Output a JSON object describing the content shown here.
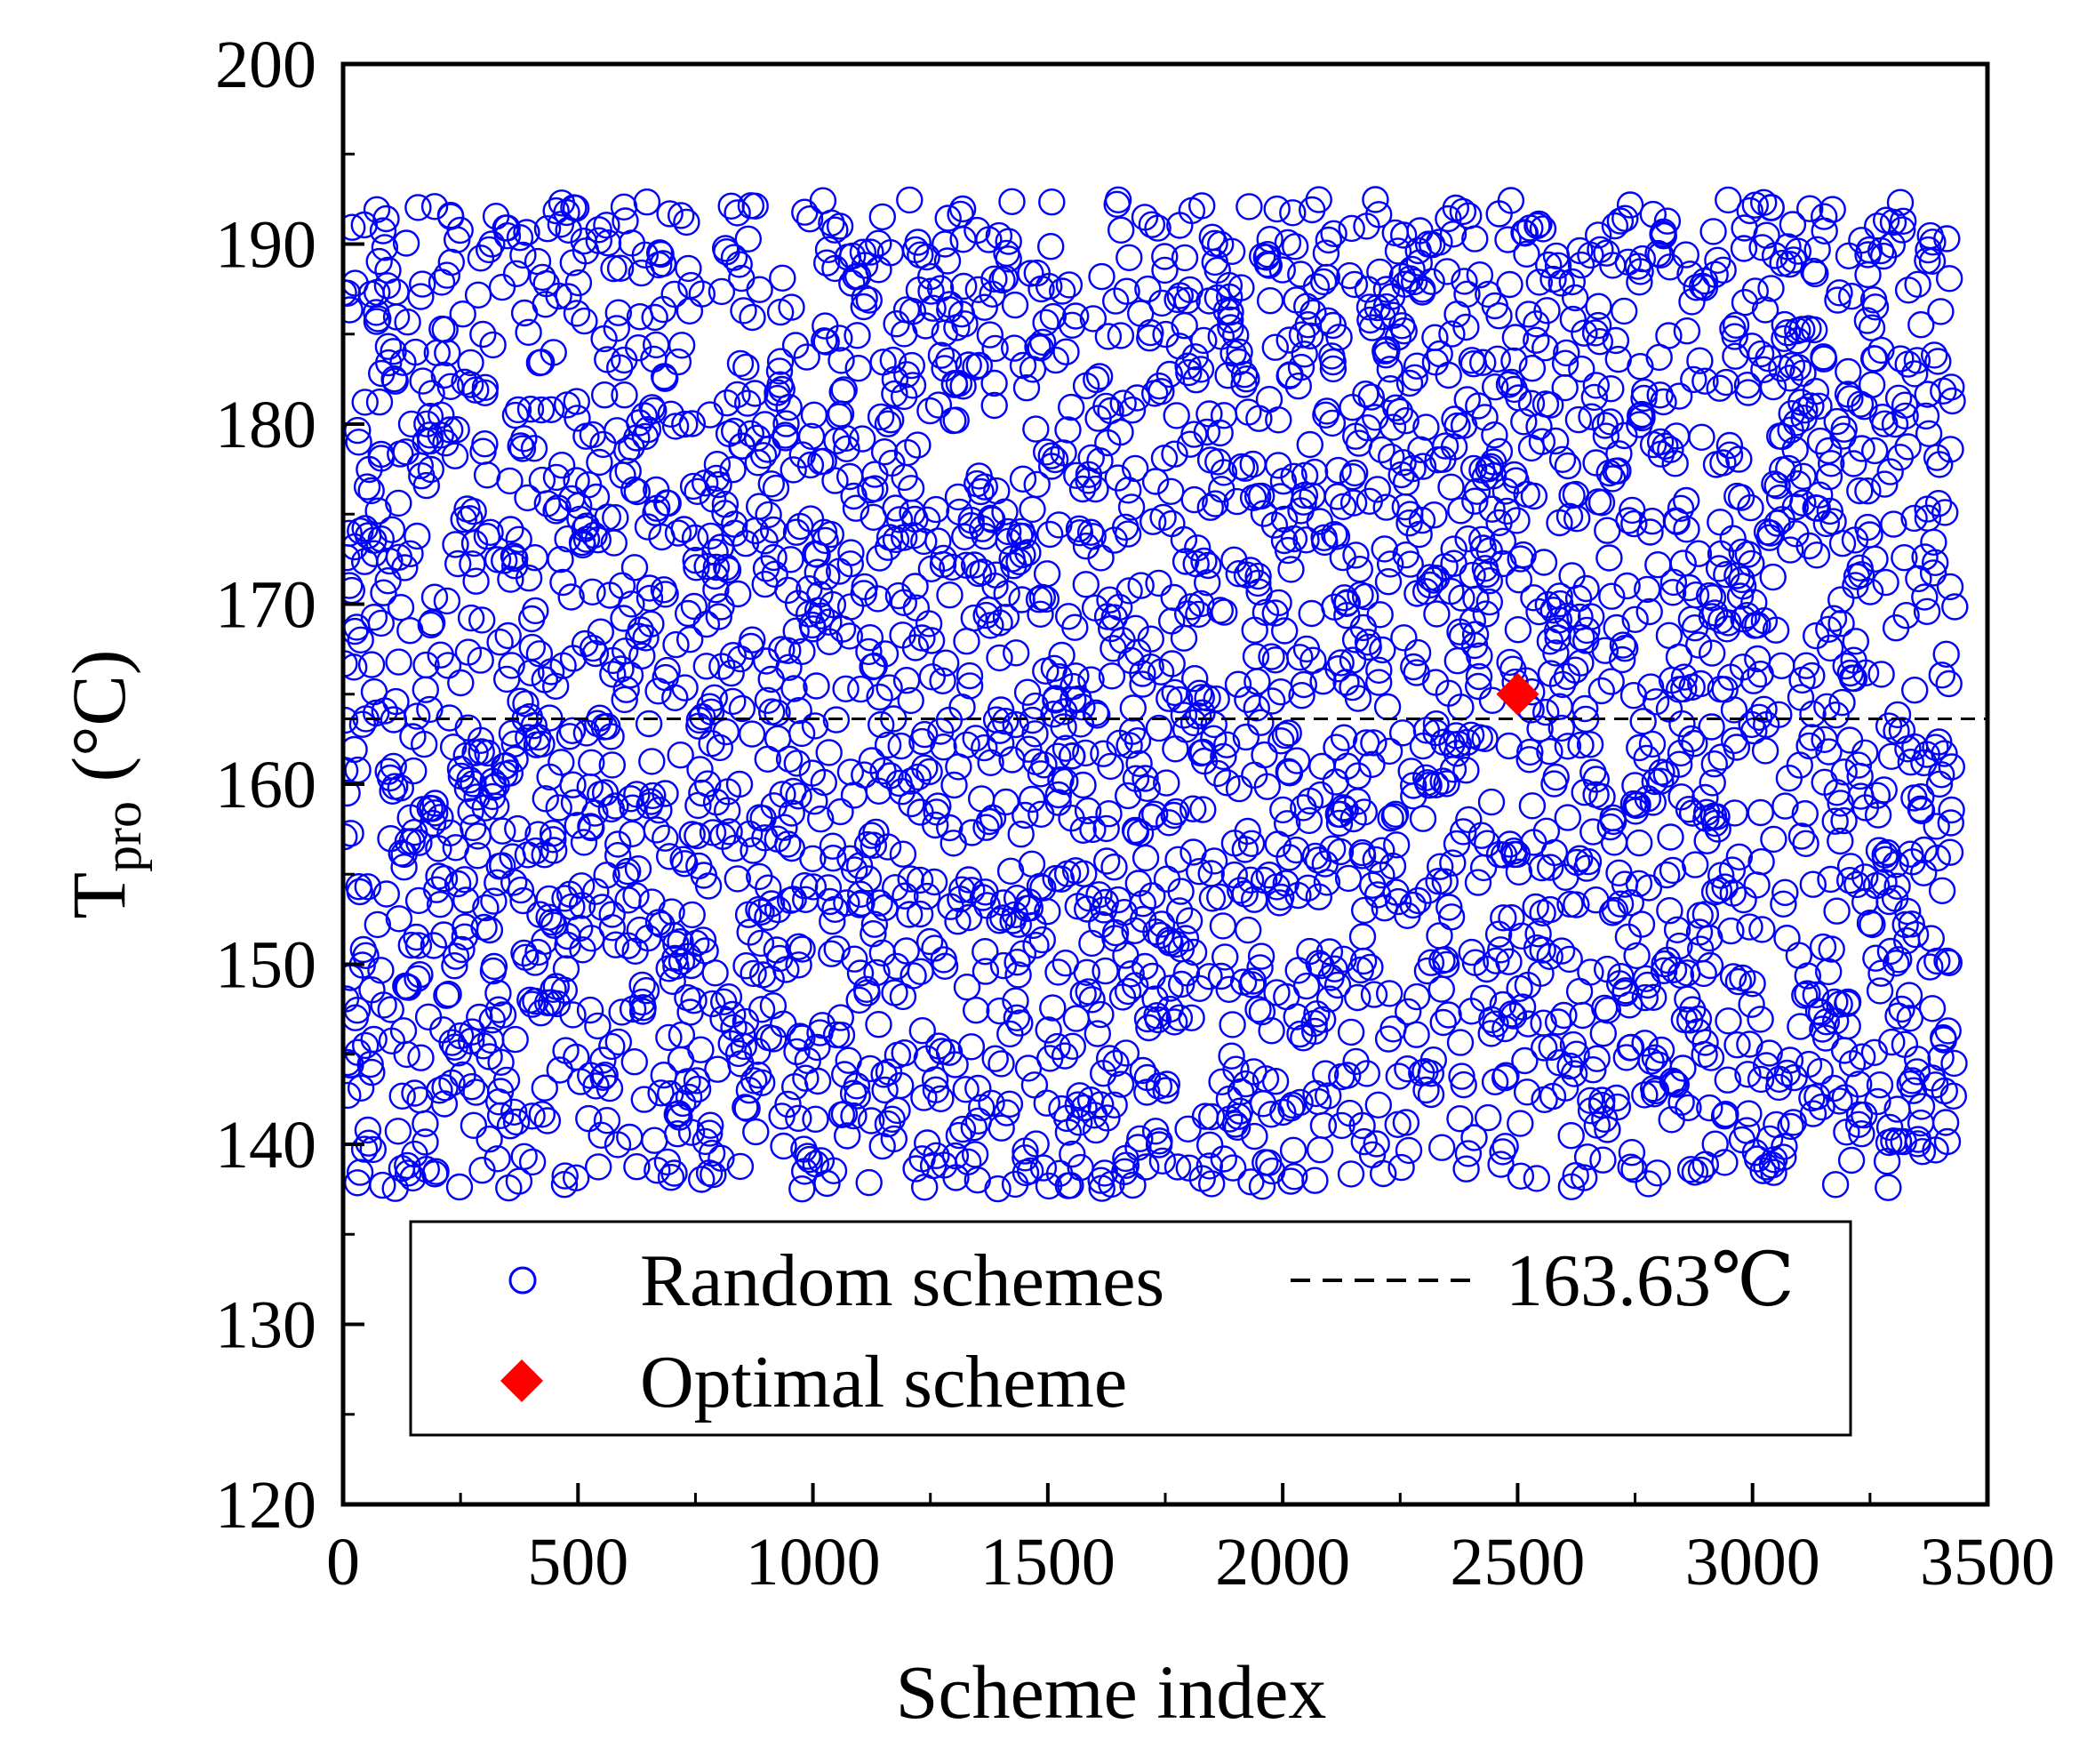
{
  "chart_data": {
    "type": "scatter",
    "title": "",
    "xlabel": "Scheme index",
    "ylabel_main": "T",
    "ylabel_sub": "pro",
    "ylabel_unit": " (°C)",
    "xlim": [
      0,
      3500
    ],
    "ylim": [
      120,
      200
    ],
    "xticks": [
      0,
      500,
      1000,
      1500,
      2000,
      2500,
      3000,
      3500
    ],
    "yticks": [
      120,
      130,
      140,
      150,
      160,
      170,
      180,
      190,
      200
    ],
    "xtick_labels": [
      "0",
      "500",
      "1000",
      "1500",
      "2000",
      "2500",
      "3000",
      "3500"
    ],
    "ytick_labels": [
      "120",
      "130",
      "140",
      "150",
      "160",
      "170",
      "180",
      "190",
      "200"
    ],
    "grid": false,
    "legend_position": "bottom-center",
    "series": [
      {
        "name": "Random schemes",
        "marker": "open-circle",
        "color": "#0000ff",
        "count": 3430,
        "x_range": [
          1,
          3430
        ],
        "y_range": [
          137.5,
          192.5
        ],
        "density_note": "approximately uniform spread between about 138 and 192 °C"
      },
      {
        "name": "Optimal scheme",
        "marker": "filled-diamond",
        "color": "#ff0000",
        "points": [
          {
            "x": 2500,
            "y": 165.0
          }
        ]
      }
    ],
    "reference_line": {
      "label": "163.63℃",
      "y": 163.63,
      "style": "dashed",
      "color": "#000000"
    }
  }
}
